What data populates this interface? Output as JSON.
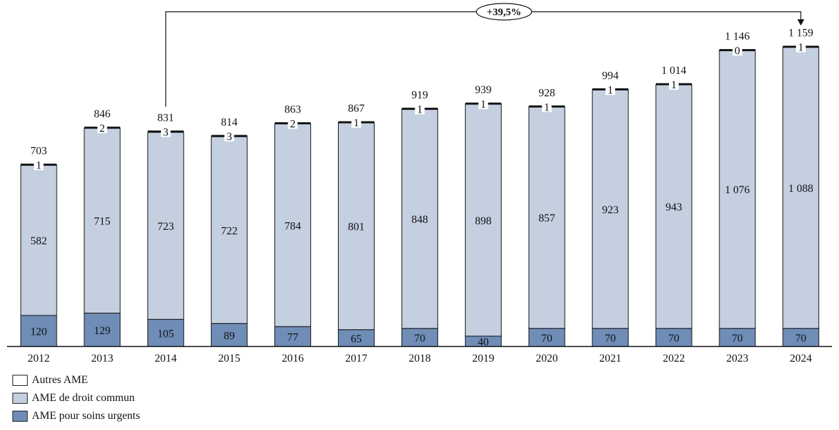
{
  "chart_data": {
    "type": "bar",
    "stacked": true,
    "categories": [
      "2012",
      "2013",
      "2014",
      "2015",
      "2016",
      "2017",
      "2018",
      "2019",
      "2020",
      "2021",
      "2022",
      "2023",
      "2024"
    ],
    "series": [
      {
        "name": "AME pour soins urgents",
        "color": "#6f8db7",
        "values": [
          120,
          129,
          105,
          89,
          77,
          65,
          70,
          40,
          70,
          70,
          70,
          70,
          70
        ]
      },
      {
        "name": "AME de droit commun",
        "color": "#c4cfe0",
        "values": [
          582,
          715,
          723,
          722,
          784,
          801,
          848,
          898,
          857,
          923,
          943,
          1076,
          1088
        ]
      },
      {
        "name": "Autres AME",
        "color": "#ffffff",
        "values": [
          1,
          2,
          3,
          3,
          2,
          1,
          1,
          1,
          1,
          1,
          1,
          0,
          1
        ]
      }
    ],
    "total_labels": [
      "703",
      "846",
      "831",
      "814",
      "863",
      "867",
      "919",
      "939",
      "928",
      "994",
      "1 014",
      "1 146",
      "1 159"
    ],
    "segment_labels": {
      "urgent": [
        "120",
        "129",
        "105",
        "89",
        "77",
        "65",
        "70",
        "40",
        "70",
        "70",
        "70",
        "70",
        "70"
      ],
      "common": [
        "582",
        "715",
        "723",
        "722",
        "784",
        "801",
        "848",
        "898",
        "857",
        "923",
        "943",
        "1 076",
        "1 088"
      ],
      "other": [
        "1",
        "2",
        "3",
        "3",
        "2",
        "1",
        "1",
        "1",
        "1",
        "1",
        "1",
        "0",
        "1"
      ]
    },
    "annotation": {
      "text": "+39,5%",
      "from": "2014",
      "to": "2024"
    },
    "ylim": [
      0,
      1200
    ],
    "legend_position": "bottom-left"
  }
}
